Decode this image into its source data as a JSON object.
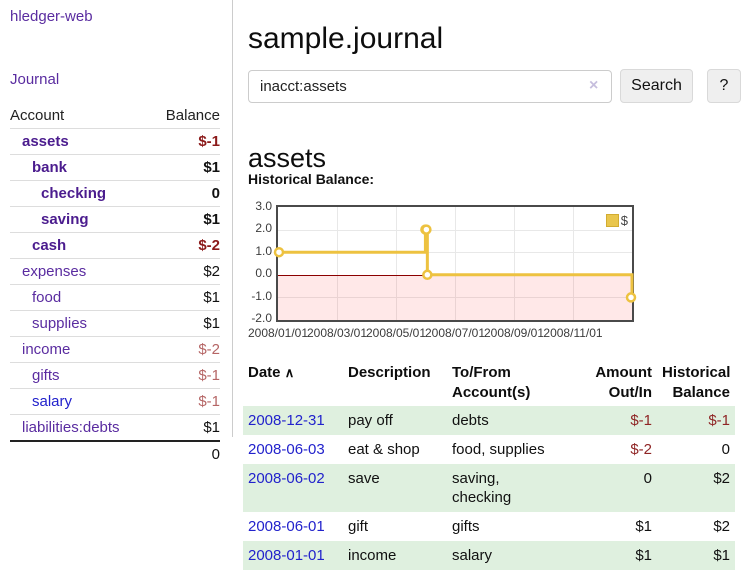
{
  "colors": {
    "link_purple": "#5a2ca0",
    "link_blue": "#2222cc",
    "negative_strong": "#8b1a1a",
    "negative_weak": "#b56565",
    "row_green": "#dff0df",
    "chart_line_yellow": "#edc240",
    "chart_negative_fill": "rgba(255,0,0,0.09)",
    "chart_zero_line": "#8b0000"
  },
  "sidebar": {
    "app_title": "hledger-web",
    "nav": {
      "journal": "Journal"
    },
    "table": {
      "account_header": "Account",
      "balance_header": "Balance",
      "accounts": [
        {
          "name": "assets",
          "balance": "$-1"
        },
        {
          "name": "bank",
          "balance": "$1"
        },
        {
          "name": "checking",
          "balance": "0"
        },
        {
          "name": "saving",
          "balance": "$1"
        },
        {
          "name": "cash",
          "balance": "$-2"
        },
        {
          "name": "expenses",
          "balance": "$2"
        },
        {
          "name": "food",
          "balance": "$1"
        },
        {
          "name": "supplies",
          "balance": "$1"
        },
        {
          "name": "income",
          "balance": "$-2"
        },
        {
          "name": "gifts",
          "balance": "$-1"
        },
        {
          "name": "salary",
          "balance": "$-1"
        },
        {
          "name": "liabilities:debts",
          "balance": "$1"
        }
      ],
      "total": "0"
    }
  },
  "main": {
    "title": "sample.journal",
    "search": {
      "value": "inacct:assets",
      "clear_icon": "×",
      "button_label": "Search",
      "help_label": "?"
    },
    "account_heading": "assets",
    "chart_label": "Historical Balance:"
  },
  "chart_data": {
    "type": "line",
    "step": true,
    "title": "Historical Balance:",
    "series": [
      {
        "name": "$",
        "points": [
          [
            "2008-01-01",
            1
          ],
          [
            "2008-06-01",
            2
          ],
          [
            "2008-06-02",
            2
          ],
          [
            "2008-06-03",
            0
          ],
          [
            "2008-12-31",
            -1
          ]
        ]
      }
    ],
    "xlim": [
      "2008-01-01",
      "2008-12-31"
    ],
    "ylim": [
      -2,
      3
    ],
    "y_ticks": [
      "3.0",
      "2.0",
      "1.0",
      "0.0",
      "-1.0",
      "-2.0"
    ],
    "x_ticks": [
      "2008/01/01",
      "2008/03/01",
      "2008/05/01",
      "2008/07/01",
      "2008/09/01",
      "2008/11/01"
    ],
    "legend": {
      "label": "$",
      "position": "top-right"
    },
    "grid": true,
    "negative_region_shaded": true,
    "zero_line": true
  },
  "transactions": {
    "headers": {
      "date": "Date",
      "sort_icon": "∧",
      "description": "Description",
      "account": "To/From Account(s)",
      "amount": "Amount Out/In",
      "balance": "Historical Balance"
    },
    "rows": [
      {
        "date": "2008-12-31",
        "description": "pay off",
        "account": "debts",
        "amount": "$-1",
        "balance": "$-1"
      },
      {
        "date": "2008-06-03",
        "description": "eat & shop",
        "account": "food, supplies",
        "amount": "$-2",
        "balance": "0"
      },
      {
        "date": "2008-06-02",
        "description": "save",
        "account": "saving,\nchecking",
        "amount": "0",
        "balance": "$2"
      },
      {
        "date": "2008-06-01",
        "description": "gift",
        "account": "gifts",
        "amount": "$1",
        "balance": "$2"
      },
      {
        "date": "2008-01-01",
        "description": "income",
        "account": "salary",
        "amount": "$1",
        "balance": "$1"
      }
    ]
  }
}
